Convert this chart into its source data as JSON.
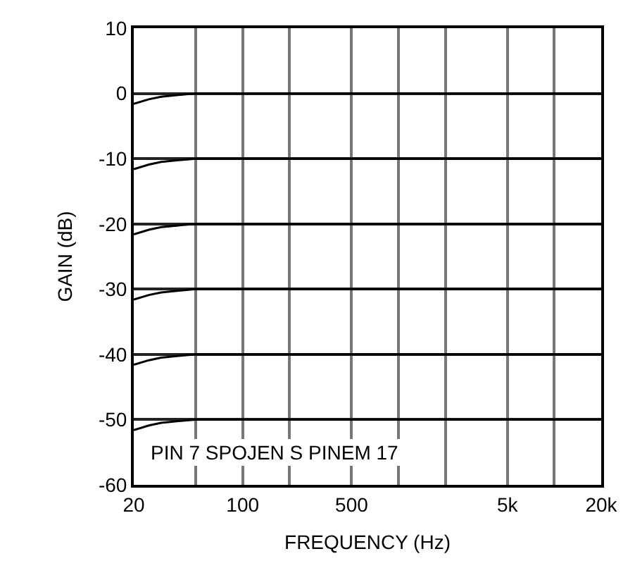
{
  "chart_data": {
    "type": "line",
    "xlabel": "FREQUENCY (Hz)",
    "ylabel": "GAIN (dB)",
    "log": "x",
    "grid": true,
    "marker": "none",
    "line_style": "solid",
    "xlim": [
      20,
      20000
    ],
    "ylim": [
      -60,
      10
    ],
    "xticks": [
      20,
      {
        "value": 50,
        "label": null
      },
      100,
      {
        "value": 200,
        "label": null
      },
      500,
      {
        "value": 1000,
        "label": null
      },
      {
        "value": 2000,
        "label": null
      },
      {
        "value": 5000,
        "label": "5k"
      },
      {
        "value": 10000,
        "label": null
      },
      {
        "value": 20000,
        "label": "20k"
      }
    ],
    "yticks": [
      -60,
      -50,
      -40,
      -30,
      -20,
      -10,
      0,
      10
    ],
    "x": [
      20,
      25,
      30,
      40,
      50,
      20000
    ],
    "series": [
      {
        "color": "#000000",
        "values": [
          -1.6,
          -0.9,
          -0.5,
          -0.2,
          0,
          0
        ]
      },
      {
        "color": "#000000",
        "values": [
          -11.6,
          -10.9,
          -10.5,
          -10.2,
          -10,
          -10
        ]
      },
      {
        "color": "#000000",
        "values": [
          -21.6,
          -20.9,
          -20.5,
          -20.2,
          -20,
          -20
        ]
      },
      {
        "color": "#000000",
        "values": [
          -31.6,
          -30.9,
          -30.5,
          -30.2,
          -30,
          -30
        ]
      },
      {
        "color": "#000000",
        "values": [
          -41.6,
          -40.9,
          -40.5,
          -40.2,
          -40,
          -40
        ]
      },
      {
        "color": "#000000",
        "values": [
          -51.6,
          -50.9,
          -50.5,
          -50.2,
          -50,
          -50
        ]
      }
    ],
    "annotations": [
      "PIN 7 SPOJEN S PINEM 17"
    ]
  }
}
